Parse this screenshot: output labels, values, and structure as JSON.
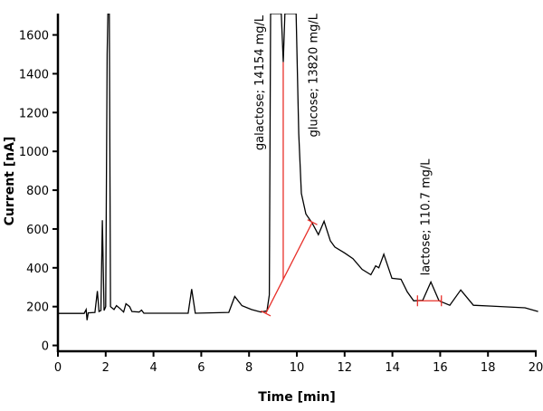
{
  "chart_data": {
    "type": "line",
    "title": "",
    "xlabel": "Time [min]",
    "ylabel": "Current [nA]",
    "xlim": [
      0,
      20
    ],
    "ylim": [
      -30,
      1710
    ],
    "xticks": [
      0,
      2,
      4,
      6,
      8,
      10,
      12,
      14,
      16,
      18,
      20
    ],
    "yticks": [
      0,
      200,
      400,
      600,
      800,
      1000,
      1200,
      1400,
      1600
    ],
    "grid": false,
    "colors": {
      "trace": "#000000",
      "integration": "#e8302a"
    },
    "series": [
      {
        "points": [
          [
            0,
            165
          ],
          [
            1.1,
            165
          ],
          [
            1.18,
            185
          ],
          [
            1.22,
            130
          ],
          [
            1.27,
            168
          ],
          [
            1.55,
            170
          ],
          [
            1.65,
            280
          ],
          [
            1.72,
            175
          ],
          [
            1.8,
            180
          ],
          [
            1.86,
            645
          ],
          [
            1.93,
            180
          ],
          [
            2.0,
            200
          ],
          [
            2.06,
            1500
          ],
          [
            2.09,
            1710
          ],
          [
            2.15,
            1710
          ],
          [
            2.2,
            200
          ],
          [
            2.35,
            185
          ],
          [
            2.45,
            205
          ],
          [
            2.6,
            190
          ],
          [
            2.75,
            172
          ],
          [
            2.85,
            215
          ],
          [
            3.0,
            200
          ],
          [
            3.1,
            175
          ],
          [
            3.4,
            172
          ],
          [
            3.5,
            182
          ],
          [
            3.6,
            166
          ],
          [
            5.45,
            166
          ],
          [
            5.6,
            290
          ],
          [
            5.75,
            166
          ],
          [
            7.15,
            170
          ],
          [
            7.4,
            252
          ],
          [
            7.7,
            205
          ],
          [
            8.1,
            185
          ],
          [
            8.5,
            172
          ],
          [
            8.75,
            178
          ],
          [
            8.85,
            260
          ],
          [
            8.9,
            1710
          ],
          [
            9.35,
            1710
          ],
          [
            9.43,
            1460
          ],
          [
            9.5,
            1710
          ],
          [
            9.97,
            1710
          ],
          [
            10.08,
            1092
          ],
          [
            10.19,
            783
          ],
          [
            10.38,
            677
          ],
          [
            10.64,
            631
          ],
          [
            10.9,
            571
          ],
          [
            11.14,
            640
          ],
          [
            11.4,
            539
          ],
          [
            11.59,
            507
          ],
          [
            11.97,
            479
          ],
          [
            12.35,
            447
          ],
          [
            12.73,
            392
          ],
          [
            13.1,
            364
          ],
          [
            13.3,
            410
          ],
          [
            13.43,
            400
          ],
          [
            13.64,
            470
          ],
          [
            13.98,
            346
          ],
          [
            14.36,
            341
          ],
          [
            14.62,
            276
          ],
          [
            14.89,
            230
          ],
          [
            15.27,
            232
          ],
          [
            15.61,
            327
          ],
          [
            15.95,
            230
          ],
          [
            16.4,
            207
          ],
          [
            16.86,
            286
          ],
          [
            17.39,
            207
          ],
          [
            18.14,
            203
          ],
          [
            19.55,
            194
          ],
          [
            20.1,
            175
          ]
        ]
      }
    ],
    "integration_marks": [
      {
        "type": "baseline",
        "from": [
          8.7,
          165
        ],
        "to": [
          10.65,
          635
        ]
      },
      {
        "type": "drop",
        "x": 9.43,
        "from": 341,
        "to": 1460
      },
      {
        "type": "baseline",
        "from": [
          15.05,
          230
        ],
        "to": [
          16.05,
          230
        ]
      }
    ],
    "annotations": [
      {
        "text": "galactose; 14154 mg/L",
        "x": 8.6,
        "y": 1005
      },
      {
        "text": "glucose; 13820 mg/L",
        "x": 10.85,
        "y": 1710
      },
      {
        "text": "lactose; 110.7 mg/L",
        "x": 15.55,
        "y": 360
      }
    ]
  }
}
